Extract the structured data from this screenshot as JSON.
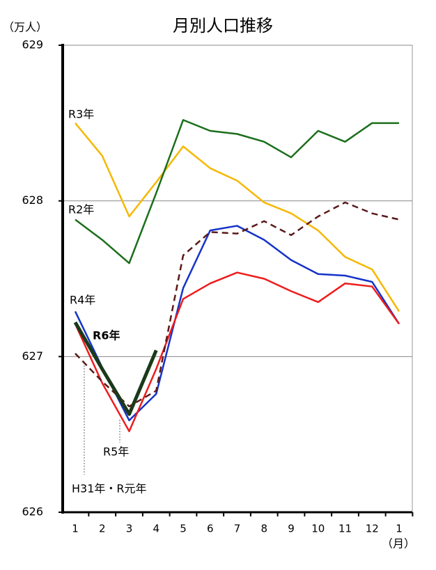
{
  "chart_data": {
    "type": "line",
    "title": "月別人口推移",
    "y_unit": "（万人）",
    "x_unit": "（月）",
    "categories": [
      "1",
      "2",
      "3",
      "4",
      "5",
      "6",
      "7",
      "8",
      "9",
      "10",
      "11",
      "12",
      "1"
    ],
    "ylim": [
      626,
      629
    ],
    "yticks": [
      626,
      627,
      628,
      629
    ],
    "grid": true,
    "series": [
      {
        "name": "R3年",
        "color": "#f5b800",
        "values": [
          628.5,
          628.29,
          627.9,
          628.12,
          628.35,
          628.21,
          628.13,
          627.99,
          627.92,
          627.81,
          627.64,
          627.56,
          627.29
        ]
      },
      {
        "name": "R2年",
        "color": "#1b6e1b",
        "values": [
          627.88,
          627.75,
          627.6,
          628.05,
          628.52,
          628.45,
          628.43,
          628.38,
          628.28,
          628.45,
          628.38,
          628.5,
          628.5
        ]
      },
      {
        "name": "R4年",
        "color": "#1533c8",
        "values": [
          627.29,
          626.93,
          626.59,
          626.76,
          627.44,
          627.81,
          627.84,
          627.75,
          627.62,
          627.53,
          627.52,
          627.48,
          627.21
        ]
      },
      {
        "name": "R5年",
        "color": "#ee1c1c",
        "values": [
          627.21,
          626.83,
          626.52,
          626.92,
          627.37,
          627.47,
          627.54,
          627.5,
          627.42,
          627.35,
          627.47,
          627.45,
          627.21
        ]
      },
      {
        "name": "H31年・R元年",
        "color": "#5a1a1a",
        "dashed": true,
        "values": [
          627.02,
          626.84,
          626.68,
          626.78,
          627.65,
          627.8,
          627.79,
          627.87,
          627.78,
          627.9,
          627.99,
          627.92,
          627.88
        ]
      },
      {
        "name": "R6年",
        "color": "#1a3a1a",
        "linewidth": 5,
        "bold": true,
        "values": [
          627.22,
          626.92,
          626.63,
          627.04,
          null,
          null,
          null,
          null,
          null,
          null,
          null,
          null,
          null
        ]
      }
    ]
  }
}
